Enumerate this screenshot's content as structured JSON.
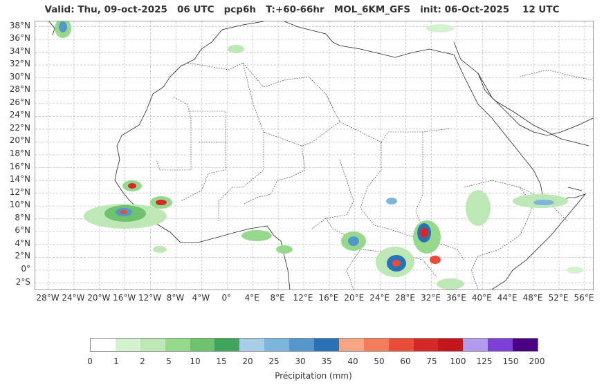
{
  "title": "Valid: Thu, 09-oct-2025   06 UTC   pcp6h   T:+60-66hr   MOL_6KM_GFS   init: 06-Oct-2025    12 UTC",
  "lat_labels": [
    "38°N",
    "36°N",
    "34°N",
    "32°N",
    "30°N",
    "28°N",
    "26°N",
    "24°N",
    "22°N",
    "20°N",
    "18°N",
    "16°N",
    "14°N",
    "12°N",
    "10°N",
    "8°N",
    "6°N",
    "4°N",
    "2°N",
    "0°",
    "2°S"
  ],
  "lon_labels": [
    "28°W",
    "24°W",
    "20°W",
    "16°W",
    "12°W",
    "8°W",
    "4°W",
    "0°",
    "4°E",
    "8°E",
    "12°E",
    "16°E",
    "20°E",
    "24°E",
    "28°E",
    "32°E",
    "36°E",
    "40°E",
    "44°E",
    "48°E",
    "52°E",
    "56°E"
  ],
  "colorbar": {
    "colors": [
      "#ffffff",
      "#d4f2d0",
      "#bde8b5",
      "#96d88c",
      "#6ec26e",
      "#3ea55a",
      "#a8cde6",
      "#7db5dc",
      "#5597cb",
      "#2a72b6",
      "#f8a585",
      "#f57c5b",
      "#ea4c3a",
      "#d62827",
      "#c4161c",
      "#b29bec",
      "#7c3fd8",
      "#4a0082"
    ],
    "ticks": [
      "0",
      "1",
      "2",
      "5",
      "10",
      "15",
      "20",
      "25",
      "30",
      "35",
      "40",
      "50",
      "60",
      "75",
      "100",
      "125",
      "150",
      "200"
    ],
    "label": "Précipitation (mm)"
  }
}
